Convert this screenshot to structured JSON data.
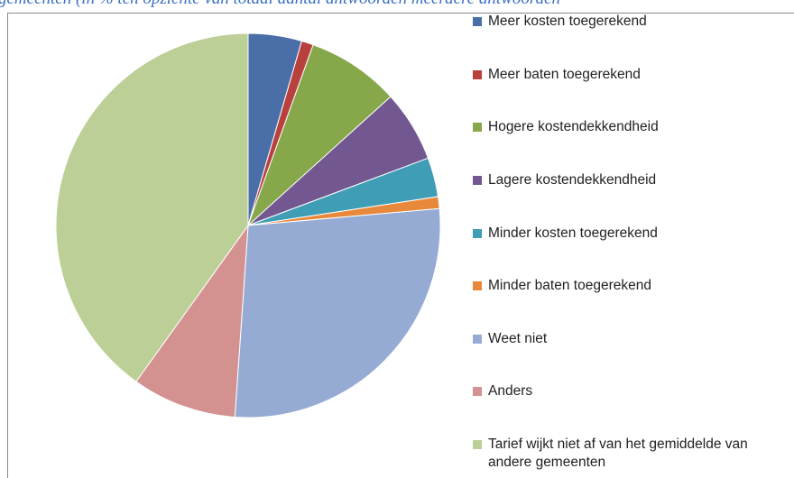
{
  "chart_data": {
    "type": "pie",
    "title": "gemeenten (in % ten opzichte van totaal aantal antwoorden meerdere antwoorden",
    "categories": [
      "Meer kosten toegerekend",
      "Meer baten toegerekend",
      "Hogere kostendekkendheid",
      "Lagere kostendekkendheid",
      "Minder kosten toegerekend",
      "Minder baten toegerekend",
      "Weet niet",
      "Anders",
      "Tarief wijkt niet af van het gemiddelde van andere gemeenten"
    ],
    "values": [
      4.5,
      1,
      7.8,
      6,
      3.3,
      1,
      27.5,
      8.8,
      40.1
    ],
    "colors": [
      "#4a6fa8",
      "#b8413e",
      "#86a84a",
      "#725790",
      "#3f9db5",
      "#e8883a",
      "#95abd3",
      "#d39290",
      "#bccf96"
    ],
    "legend": "right"
  }
}
